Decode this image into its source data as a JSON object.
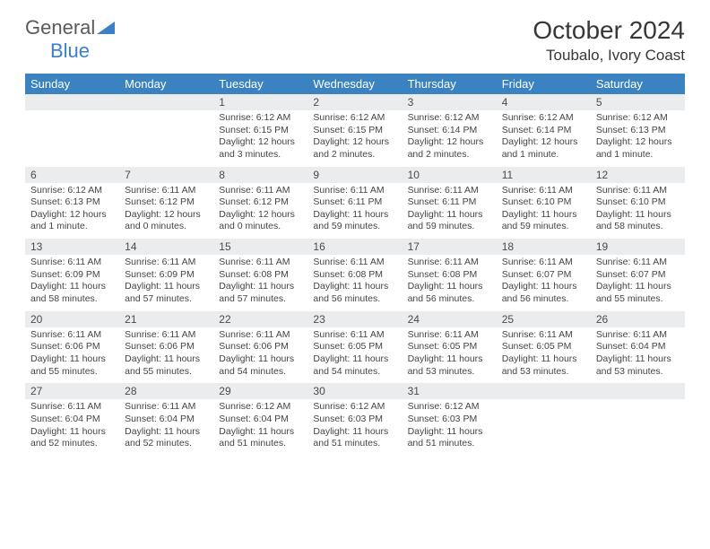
{
  "brand": {
    "word1": "General",
    "word2": "Blue"
  },
  "title": "October 2024",
  "location": "Toubalo, Ivory Coast",
  "colors": {
    "header_bg": "#3b83c0",
    "header_text": "#ffffff",
    "daynum_bg": "#ebeced",
    "row_border": "#2d5b86",
    "body_text": "#454545",
    "title_text": "#373737",
    "logo_gray": "#5a5a5a",
    "logo_blue": "#3b7fc4"
  },
  "fonts": {
    "body_pt": 10.5,
    "daynum_pt": 12,
    "header_pt": 13,
    "title_pt": 28,
    "location_pt": 17
  },
  "layout": {
    "columns": 7,
    "col_width_pct": 14.28
  },
  "weekday_labels": [
    "Sunday",
    "Monday",
    "Tuesday",
    "Wednesday",
    "Thursday",
    "Friday",
    "Saturday"
  ],
  "weeks": [
    {
      "nums": [
        "",
        "",
        "1",
        "2",
        "3",
        "4",
        "5"
      ],
      "cells": [
        "",
        "",
        "Sunrise: 6:12 AM\nSunset: 6:15 PM\nDaylight: 12 hours and 3 minutes.",
        "Sunrise: 6:12 AM\nSunset: 6:15 PM\nDaylight: 12 hours and 2 minutes.",
        "Sunrise: 6:12 AM\nSunset: 6:14 PM\nDaylight: 12 hours and 2 minutes.",
        "Sunrise: 6:12 AM\nSunset: 6:14 PM\nDaylight: 12 hours and 1 minute.",
        "Sunrise: 6:12 AM\nSunset: 6:13 PM\nDaylight: 12 hours and 1 minute."
      ]
    },
    {
      "nums": [
        "6",
        "7",
        "8",
        "9",
        "10",
        "11",
        "12"
      ],
      "cells": [
        "Sunrise: 6:12 AM\nSunset: 6:13 PM\nDaylight: 12 hours and 1 minute.",
        "Sunrise: 6:11 AM\nSunset: 6:12 PM\nDaylight: 12 hours and 0 minutes.",
        "Sunrise: 6:11 AM\nSunset: 6:12 PM\nDaylight: 12 hours and 0 minutes.",
        "Sunrise: 6:11 AM\nSunset: 6:11 PM\nDaylight: 11 hours and 59 minutes.",
        "Sunrise: 6:11 AM\nSunset: 6:11 PM\nDaylight: 11 hours and 59 minutes.",
        "Sunrise: 6:11 AM\nSunset: 6:10 PM\nDaylight: 11 hours and 59 minutes.",
        "Sunrise: 6:11 AM\nSunset: 6:10 PM\nDaylight: 11 hours and 58 minutes."
      ]
    },
    {
      "nums": [
        "13",
        "14",
        "15",
        "16",
        "17",
        "18",
        "19"
      ],
      "cells": [
        "Sunrise: 6:11 AM\nSunset: 6:09 PM\nDaylight: 11 hours and 58 minutes.",
        "Sunrise: 6:11 AM\nSunset: 6:09 PM\nDaylight: 11 hours and 57 minutes.",
        "Sunrise: 6:11 AM\nSunset: 6:08 PM\nDaylight: 11 hours and 57 minutes.",
        "Sunrise: 6:11 AM\nSunset: 6:08 PM\nDaylight: 11 hours and 56 minutes.",
        "Sunrise: 6:11 AM\nSunset: 6:08 PM\nDaylight: 11 hours and 56 minutes.",
        "Sunrise: 6:11 AM\nSunset: 6:07 PM\nDaylight: 11 hours and 56 minutes.",
        "Sunrise: 6:11 AM\nSunset: 6:07 PM\nDaylight: 11 hours and 55 minutes."
      ]
    },
    {
      "nums": [
        "20",
        "21",
        "22",
        "23",
        "24",
        "25",
        "26"
      ],
      "cells": [
        "Sunrise: 6:11 AM\nSunset: 6:06 PM\nDaylight: 11 hours and 55 minutes.",
        "Sunrise: 6:11 AM\nSunset: 6:06 PM\nDaylight: 11 hours and 55 minutes.",
        "Sunrise: 6:11 AM\nSunset: 6:06 PM\nDaylight: 11 hours and 54 minutes.",
        "Sunrise: 6:11 AM\nSunset: 6:05 PM\nDaylight: 11 hours and 54 minutes.",
        "Sunrise: 6:11 AM\nSunset: 6:05 PM\nDaylight: 11 hours and 53 minutes.",
        "Sunrise: 6:11 AM\nSunset: 6:05 PM\nDaylight: 11 hours and 53 minutes.",
        "Sunrise: 6:11 AM\nSunset: 6:04 PM\nDaylight: 11 hours and 53 minutes."
      ]
    },
    {
      "nums": [
        "27",
        "28",
        "29",
        "30",
        "31",
        "",
        ""
      ],
      "cells": [
        "Sunrise: 6:11 AM\nSunset: 6:04 PM\nDaylight: 11 hours and 52 minutes.",
        "Sunrise: 6:11 AM\nSunset: 6:04 PM\nDaylight: 11 hours and 52 minutes.",
        "Sunrise: 6:12 AM\nSunset: 6:04 PM\nDaylight: 11 hours and 51 minutes.",
        "Sunrise: 6:12 AM\nSunset: 6:03 PM\nDaylight: 11 hours and 51 minutes.",
        "Sunrise: 6:12 AM\nSunset: 6:03 PM\nDaylight: 11 hours and 51 minutes.",
        "",
        ""
      ]
    }
  ]
}
